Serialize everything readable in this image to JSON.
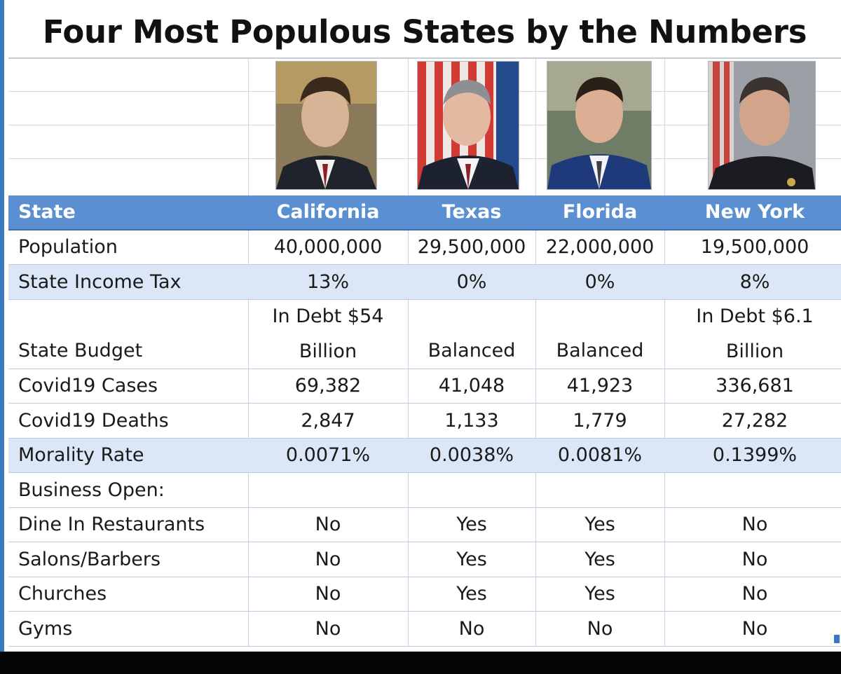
{
  "title": "Four Most Populous States by the Numbers",
  "colors": {
    "header_blue": "#5a8fd2",
    "shaded_row": "#dbe7f6",
    "frame_blue": "#3a78c0"
  },
  "portraits": [
    {
      "name": "california-governor-photo"
    },
    {
      "name": "texas-governor-photo"
    },
    {
      "name": "florida-governor-photo"
    },
    {
      "name": "new-york-governor-photo"
    }
  ],
  "chart_data": {
    "type": "table",
    "title": "Four Most Populous States by the Numbers",
    "columns": [
      "State",
      "California",
      "Texas",
      "Florida",
      "New York"
    ],
    "rows": [
      {
        "label": "Population",
        "values": [
          "40,000,000",
          "29,500,000",
          "22,000,000",
          "19,500,000"
        ]
      },
      {
        "label": "State Income Tax",
        "values": [
          "13%",
          "0%",
          "0%",
          "8%"
        ]
      },
      {
        "label": "State Budget",
        "values": [
          [
            "In Debt $54",
            "Billion"
          ],
          [
            "",
            "Balanced"
          ],
          [
            "",
            "Balanced"
          ],
          [
            "In Debt $6.1",
            "Billion"
          ]
        ]
      },
      {
        "label": "Covid19 Cases",
        "values": [
          "69,382",
          "41,048",
          "41,923",
          "336,681"
        ]
      },
      {
        "label": "Covid19 Deaths",
        "values": [
          "2,847",
          "1,133",
          "1,779",
          "27,282"
        ]
      },
      {
        "label": "Morality Rate",
        "values": [
          "0.0071%",
          "0.0038%",
          "0.0081%",
          "0.1399%"
        ]
      },
      {
        "label": "Business Open:",
        "values": [
          "",
          "",
          "",
          ""
        ]
      },
      {
        "label": "Dine In Restaurants",
        "values": [
          "No",
          "Yes",
          "Yes",
          "No"
        ]
      },
      {
        "label": "Salons/Barbers",
        "values": [
          "No",
          "Yes",
          "Yes",
          "No"
        ]
      },
      {
        "label": "Churches",
        "values": [
          "No",
          "Yes",
          "Yes",
          "No"
        ]
      },
      {
        "label": "Gyms",
        "values": [
          "No",
          "No",
          "No",
          "No"
        ]
      }
    ]
  }
}
